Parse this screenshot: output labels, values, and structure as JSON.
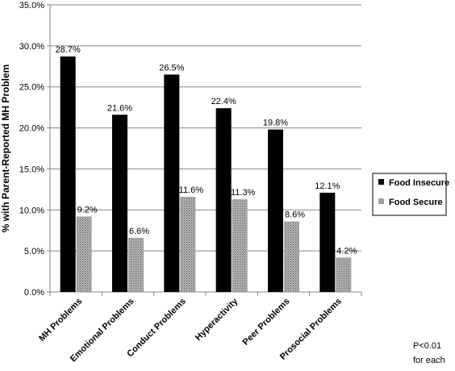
{
  "chart_data": {
    "type": "bar",
    "title": "",
    "xlabel": "",
    "ylabel": "% with Parent-Reported MH Problem",
    "ylim": [
      0,
      35
    ],
    "y_tick_step": 5,
    "y_tick_format": "percent_1dp",
    "grid": true,
    "legend_position": "right",
    "categories": [
      "MH Problems",
      "Emotional Problems",
      "Conduct Problems",
      "Hyperactivity",
      "Peer Problems",
      "Prosocial Problems"
    ],
    "series": [
      {
        "name": "Food Insecure",
        "color": "#000000",
        "pattern": "solid",
        "values": [
          28.7,
          21.6,
          26.5,
          22.4,
          19.8,
          12.1
        ],
        "labels": [
          "28.7%",
          "21.6%",
          "26.5%",
          "22.4%",
          "19.8%",
          "12.1%"
        ]
      },
      {
        "name": "Food Secure",
        "color": "#8c8c8c",
        "pattern": "crosshatch",
        "values": [
          9.2,
          6.6,
          11.6,
          11.3,
          8.6,
          4.2
        ],
        "labels": [
          "9.2%",
          "6.6%",
          "11.6%",
          "11.3%",
          "8.6%",
          "4.2%"
        ]
      }
    ],
    "annotation": [
      "P<0.01",
      "for each"
    ]
  }
}
